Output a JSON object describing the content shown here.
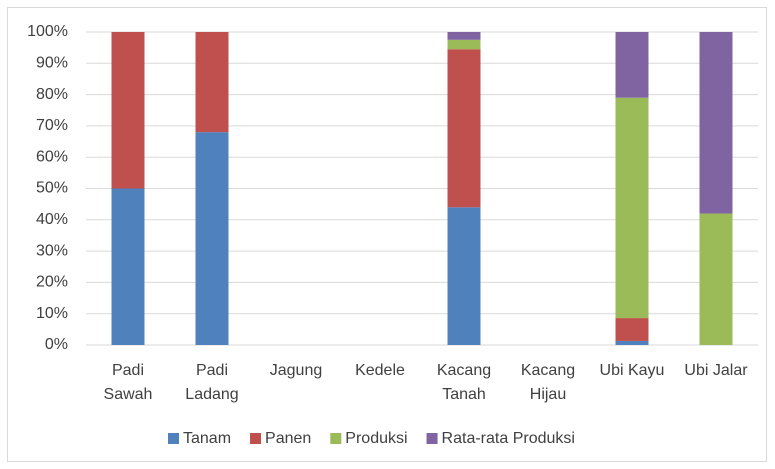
{
  "chart_data": {
    "type": "stacked_bar_percent",
    "categories": [
      "Padi\nSawah",
      "Padi\nLadang",
      "Jagung",
      "Kedele",
      "Kacang\nTanah",
      "Kacang\nHijau",
      "Ubi Kayu",
      "Ubi Jalar"
    ],
    "series": [
      {
        "name": "Tanam",
        "color": "#4f81bd",
        "values": [
          50,
          68,
          0,
          0,
          44,
          0,
          1.3,
          0
        ]
      },
      {
        "name": "Panen",
        "color": "#c0504d",
        "values": [
          50,
          32,
          0,
          0,
          50.5,
          0,
          7.3,
          0
        ]
      },
      {
        "name": "Produksi",
        "color": "#9bbb59",
        "values": [
          0,
          0,
          0,
          0,
          3,
          0,
          70.4,
          42
        ]
      },
      {
        "name": "Rata-rata Produksi",
        "color": "#8064a2",
        "values": [
          0,
          0,
          0,
          0,
          2.5,
          0,
          21,
          58
        ]
      }
    ],
    "ylim": [
      0,
      100
    ],
    "yticks": [
      {
        "value": 0,
        "label": "0%"
      },
      {
        "value": 10,
        "label": "10%"
      },
      {
        "value": 20,
        "label": "20%"
      },
      {
        "value": 30,
        "label": "30%"
      },
      {
        "value": 40,
        "label": "40%"
      },
      {
        "value": 50,
        "label": "50%"
      },
      {
        "value": 60,
        "label": "60%"
      },
      {
        "value": 70,
        "label": "70%"
      },
      {
        "value": 80,
        "label": "80%"
      },
      {
        "value": 90,
        "label": "90%"
      },
      {
        "value": 100,
        "label": "100%"
      }
    ],
    "grid": true,
    "legend": "bottom"
  }
}
